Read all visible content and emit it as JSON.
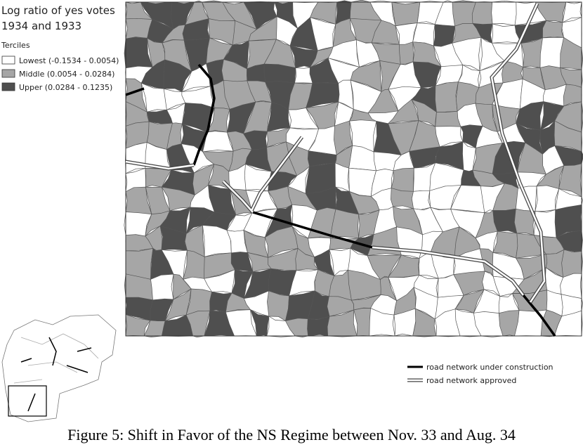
{
  "legend": {
    "title": [
      "Log ratio of yes votes",
      "1934 and 1933"
    ],
    "subtitle": "Terciles",
    "items": [
      {
        "label": "Lowest (-0.1534 - 0.0054)",
        "color": "#ffffff"
      },
      {
        "label": "Middle (0.0054 - 0.0284)",
        "color": "#a6a6a6"
      },
      {
        "label": "Upper (0.0284 - 0.1235)",
        "color": "#4f4f4f"
      }
    ]
  },
  "roads": [
    {
      "label": "road network under construction"
    },
    {
      "label": "road network approved"
    }
  ],
  "caption": "Figure 5: Shift in Favor of the NS Regime between Nov. 33 and Aug. 34"
}
